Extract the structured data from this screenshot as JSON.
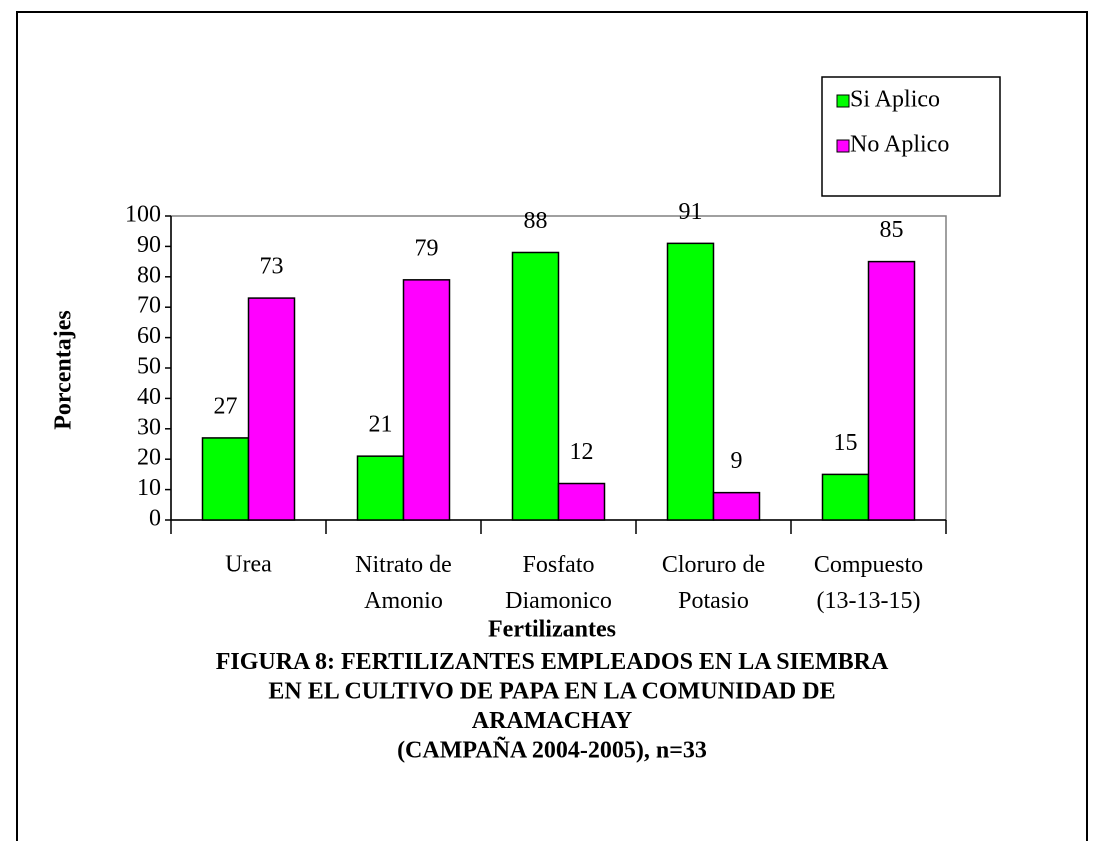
{
  "chart_data": {
    "type": "bar",
    "title": "FIGURA 8: FERTILIZANTES EMPLEADOS EN LA SIEMBRA\nEN EL CULTIVO DE PAPA EN LA COMUNIDAD DE\nARAMACHAY\n(CAMPAÑA 2004-2005), n=33",
    "x_label": "Fertilizantes",
    "y_label": "Porcentajes",
    "categories": [
      "Urea",
      "Nitrato de\nAmonio",
      "Fosfato\nDiamonico",
      "Cloruro de\nPotasio",
      "Compuesto\n(13-13-15)"
    ],
    "series": [
      {
        "name": "Si Aplico",
        "color": "#00ff00",
        "values": [
          27,
          21,
          88,
          91,
          15
        ]
      },
      {
        "name": "No Aplico",
        "color": "#ff00ff",
        "values": [
          73,
          79,
          12,
          9,
          85
        ]
      }
    ],
    "ylim": [
      0,
      100
    ],
    "yticks": [
      0,
      10,
      20,
      30,
      40,
      50,
      60,
      70,
      80,
      90,
      100
    ],
    "grid": false,
    "legend": "top-right"
  }
}
